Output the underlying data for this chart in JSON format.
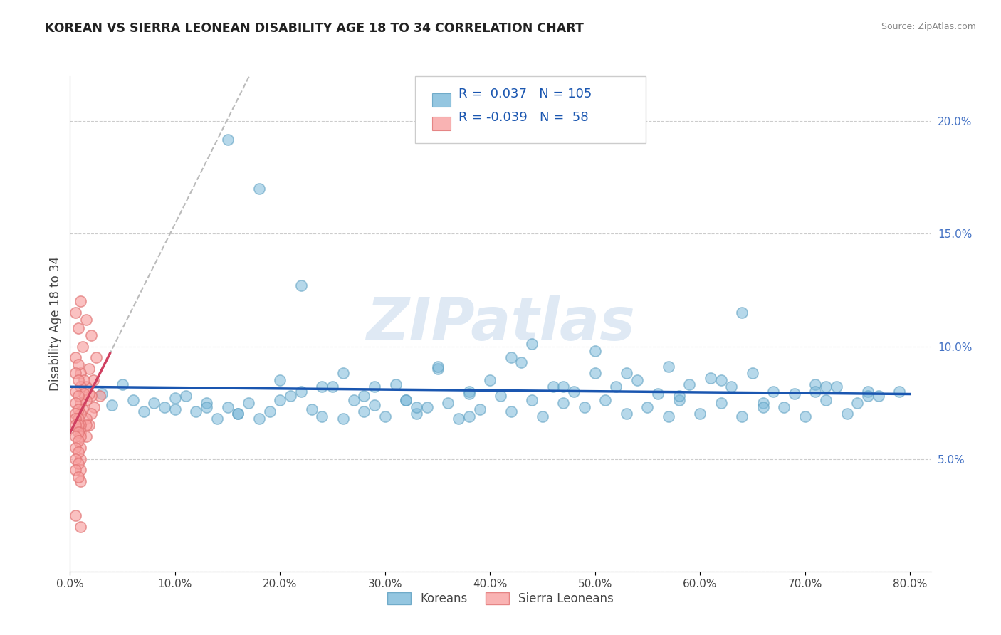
{
  "title": "KOREAN VS SIERRA LEONEAN DISABILITY AGE 18 TO 34 CORRELATION CHART",
  "source": "Source: ZipAtlas.com",
  "ylabel": "Disability Age 18 to 34",
  "xlim": [
    0.0,
    0.82
  ],
  "ylim": [
    0.0,
    0.22
  ],
  "xticks": [
    0.0,
    0.1,
    0.2,
    0.3,
    0.4,
    0.5,
    0.6,
    0.7,
    0.8
  ],
  "xticklabels": [
    "0.0%",
    "10.0%",
    "20.0%",
    "30.0%",
    "40.0%",
    "50.0%",
    "60.0%",
    "70.0%",
    "80.0%"
  ],
  "yticks": [
    0.0,
    0.05,
    0.1,
    0.15,
    0.2
  ],
  "yticklabels": [
    "",
    "5.0%",
    "10.0%",
    "15.0%",
    "20.0%"
  ],
  "korean_color": "#7ab8d9",
  "korean_edge": "#5a9ec0",
  "sierra_color": "#f8a0a0",
  "sierra_edge": "#e07070",
  "trendline_korean_color": "#1a56b0",
  "trendline_sierra_color": "#d04060",
  "trendline_dashed_color": "#bbbbbb",
  "watermark": "ZIPatlas",
  "R_korean": 0.037,
  "N_korean": 105,
  "R_sierra": -0.039,
  "N_sierra": 58,
  "legend_labels": [
    "Koreans",
    "Sierra Leoneans"
  ],
  "background_color": "#ffffff",
  "grid_color": "#cccccc",
  "korean_x": [
    0.05,
    0.08,
    0.1,
    0.12,
    0.14,
    0.15,
    0.16,
    0.17,
    0.18,
    0.19,
    0.2,
    0.21,
    0.22,
    0.23,
    0.24,
    0.25,
    0.26,
    0.27,
    0.28,
    0.29,
    0.3,
    0.31,
    0.32,
    0.33,
    0.34,
    0.35,
    0.36,
    0.37,
    0.38,
    0.39,
    0.4,
    0.41,
    0.42,
    0.43,
    0.44,
    0.45,
    0.46,
    0.47,
    0.48,
    0.49,
    0.5,
    0.51,
    0.52,
    0.53,
    0.54,
    0.55,
    0.56,
    0.57,
    0.58,
    0.59,
    0.6,
    0.61,
    0.62,
    0.63,
    0.64,
    0.65,
    0.66,
    0.67,
    0.68,
    0.69,
    0.7,
    0.71,
    0.72,
    0.73,
    0.74,
    0.75,
    0.76,
    0.77,
    0.03,
    0.06,
    0.09,
    0.11,
    0.13,
    0.26,
    0.29,
    0.32,
    0.35,
    0.22,
    0.18,
    0.15,
    0.38,
    0.42,
    0.47,
    0.53,
    0.58,
    0.62,
    0.66,
    0.71,
    0.76,
    0.04,
    0.07,
    0.1,
    0.13,
    0.16,
    0.2,
    0.24,
    0.28,
    0.33,
    0.38,
    0.44,
    0.5,
    0.57,
    0.64,
    0.72,
    0.79
  ],
  "korean_y": [
    0.083,
    0.075,
    0.072,
    0.071,
    0.068,
    0.073,
    0.07,
    0.075,
    0.068,
    0.071,
    0.085,
    0.078,
    0.08,
    0.072,
    0.069,
    0.082,
    0.068,
    0.076,
    0.071,
    0.074,
    0.069,
    0.083,
    0.076,
    0.07,
    0.073,
    0.09,
    0.075,
    0.068,
    0.08,
    0.072,
    0.085,
    0.078,
    0.071,
    0.093,
    0.076,
    0.069,
    0.082,
    0.075,
    0.08,
    0.073,
    0.088,
    0.076,
    0.082,
    0.07,
    0.085,
    0.073,
    0.079,
    0.069,
    0.076,
    0.083,
    0.07,
    0.086,
    0.075,
    0.082,
    0.069,
    0.088,
    0.075,
    0.08,
    0.073,
    0.079,
    0.069,
    0.083,
    0.076,
    0.082,
    0.07,
    0.075,
    0.08,
    0.078,
    0.079,
    0.076,
    0.073,
    0.078,
    0.075,
    0.088,
    0.082,
    0.076,
    0.091,
    0.127,
    0.17,
    0.192,
    0.069,
    0.095,
    0.082,
    0.088,
    0.078,
    0.085,
    0.073,
    0.08,
    0.078,
    0.074,
    0.071,
    0.077,
    0.073,
    0.07,
    0.076,
    0.082,
    0.078,
    0.073,
    0.079,
    0.101,
    0.098,
    0.091,
    0.115,
    0.082,
    0.08
  ],
  "sierra_x": [
    0.005,
    0.01,
    0.015,
    0.02,
    0.025,
    0.008,
    0.012,
    0.018,
    0.022,
    0.028,
    0.005,
    0.01,
    0.015,
    0.02,
    0.008,
    0.013,
    0.018,
    0.023,
    0.005,
    0.01,
    0.015,
    0.02,
    0.008,
    0.013,
    0.005,
    0.01,
    0.015,
    0.008,
    0.012,
    0.018,
    0.005,
    0.01,
    0.008,
    0.015,
    0.005,
    0.01,
    0.008,
    0.005,
    0.01,
    0.008,
    0.015,
    0.005,
    0.01,
    0.008,
    0.005,
    0.01,
    0.008,
    0.005,
    0.01,
    0.008,
    0.005,
    0.01,
    0.008,
    0.005,
    0.01,
    0.008,
    0.005,
    0.01
  ],
  "sierra_y": [
    0.115,
    0.12,
    0.112,
    0.105,
    0.095,
    0.108,
    0.1,
    0.09,
    0.085,
    0.078,
    0.095,
    0.088,
    0.082,
    0.078,
    0.092,
    0.085,
    0.079,
    0.073,
    0.088,
    0.082,
    0.076,
    0.07,
    0.085,
    0.079,
    0.08,
    0.075,
    0.068,
    0.078,
    0.072,
    0.065,
    0.075,
    0.07,
    0.072,
    0.065,
    0.07,
    0.065,
    0.068,
    0.068,
    0.062,
    0.065,
    0.06,
    0.065,
    0.06,
    0.062,
    0.06,
    0.055,
    0.058,
    0.055,
    0.05,
    0.053,
    0.05,
    0.045,
    0.048,
    0.045,
    0.04,
    0.042,
    0.025,
    0.02
  ]
}
